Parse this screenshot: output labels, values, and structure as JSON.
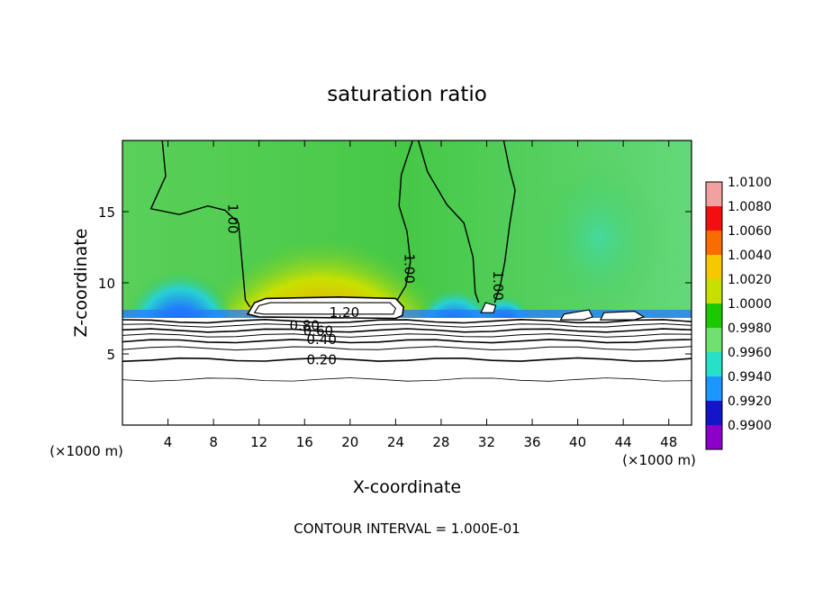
{
  "chart_data": {
    "type": "heatmap",
    "title": "saturation ratio",
    "xlabel": "X-coordinate",
    "ylabel": "Z-coordinate",
    "x_unit_label": "(×1000 m)",
    "x_unit_label_left": "(×1000 m)",
    "xlim": [
      0,
      50
    ],
    "ylim": [
      0,
      20
    ],
    "x_ticks": [
      "4",
      "8",
      "12",
      "16",
      "20",
      "24",
      "28",
      "32",
      "36",
      "40",
      "44",
      "48"
    ],
    "y_ticks": [
      "5",
      "10",
      "15"
    ],
    "footer": "CONTOUR INTERVAL = 1.000E-01",
    "colorbar": {
      "labels": [
        "1.0100",
        "1.0080",
        "1.0060",
        "1.0040",
        "1.0020",
        "1.0000",
        "0.9980",
        "0.9960",
        "0.9940",
        "0.9920",
        "0.9900"
      ],
      "colors": [
        "#f2a0a0",
        "#f01010",
        "#f86c00",
        "#f5c800",
        "#c8e000",
        "#1ec800",
        "#6ee06e",
        "#28e0c8",
        "#1e96ff",
        "#1414c8",
        "#8c00c8"
      ]
    },
    "contour_labels": [
      {
        "text": "1.20",
        "x": 19.5,
        "y": 7.9
      },
      {
        "text": "0.80",
        "x": 16.0,
        "y": 7.0
      },
      {
        "text": "0.60",
        "x": 17.2,
        "y": 6.6
      },
      {
        "text": "0.40",
        "x": 17.5,
        "y": 6.0
      },
      {
        "text": "0.20",
        "x": 17.5,
        "y": 4.6
      },
      {
        "text": "1.00",
        "x": 9.7,
        "y": 14.5
      },
      {
        "text": "1.00",
        "x": 25.2,
        "y": 11.0
      },
      {
        "text": "1.00",
        "x": 33.0,
        "y": 9.8
      }
    ]
  }
}
